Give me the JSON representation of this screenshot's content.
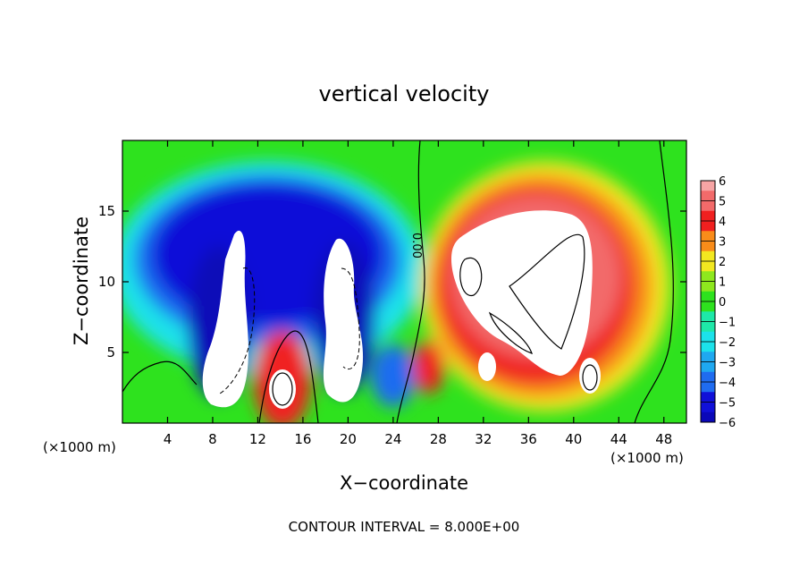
{
  "chart_data": {
    "type": "heatmap",
    "title": "vertical velocity",
    "xlabel": "X−coordinate",
    "ylabel": "Z−coordinate",
    "x_unit_left": "(×1000 m)",
    "x_unit_right": "(×1000 m)",
    "footer": "CONTOUR INTERVAL = 8.000E+00",
    "xlim": [
      0,
      50
    ],
    "ylim": [
      0,
      20
    ],
    "x_ticks": [
      4,
      8,
      12,
      16,
      20,
      24,
      28,
      32,
      36,
      40,
      44,
      48
    ],
    "x_tick_labels": [
      "4",
      "8",
      "12",
      "16",
      "20",
      "24",
      "28",
      "32",
      "36",
      "40",
      "44",
      "48"
    ],
    "y_ticks": [
      5,
      10,
      15
    ],
    "y_tick_labels": [
      "5",
      "10",
      "15"
    ],
    "colorbar": {
      "range": [
        -6,
        6
      ],
      "tick_labels": [
        "6",
        "5",
        "4",
        "3",
        "2",
        "1",
        "0",
        "−1",
        "−2",
        "−3",
        "−4",
        "−5",
        "−6"
      ]
    },
    "contour_label": "0.00",
    "updraft_cores_x": [
      18,
      31,
      36,
      39,
      42
    ],
    "downdraft_cores_x": [
      10,
      19,
      26
    ],
    "description_note": null
  }
}
